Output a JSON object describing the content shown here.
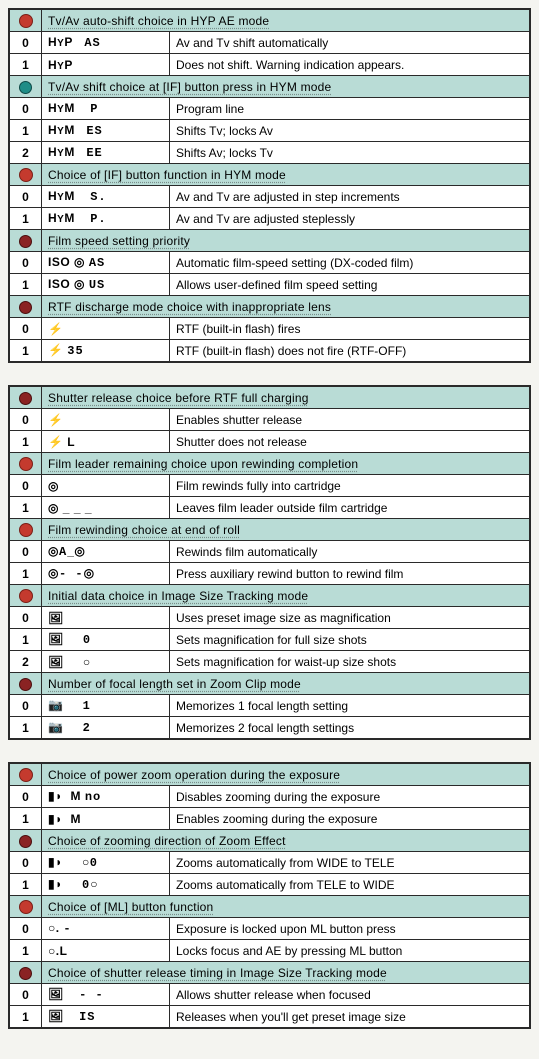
{
  "colors": {
    "header_bg": "#b9dcd6",
    "border": "#2a2a2a",
    "dot_red": "#c43a2e",
    "dot_teal": "#1f8d87",
    "dot_dark": "#8a2323"
  },
  "blocks": [
    {
      "sections": [
        {
          "marker": "red",
          "title": "Tv/Av auto-shift choice in HYP AE mode",
          "rows": [
            {
              "idx": "0",
              "sym_html": "H<span class='sub'>Y</span>P&nbsp;&nbsp;&nbsp;<span class='seg'>AS</span>",
              "desc": "Av and Tv shift automatically"
            },
            {
              "idx": "1",
              "sym_html": "H<span class='sub'>Y</span>P",
              "desc": "Does not shift. Warning indication appears."
            }
          ]
        },
        {
          "marker": "teal",
          "title": "Tv/Av shift choice at  [IF]  button press in HYM mode",
          "rows": [
            {
              "idx": "0",
              "sym_html": "H<span class='sub'>Y</span>M&nbsp;&nbsp;&nbsp;&nbsp;<span class='seg'>P</span>",
              "desc": "Program line"
            },
            {
              "idx": "1",
              "sym_html": "H<span class='sub'>Y</span>M&nbsp;&nbsp;&nbsp;<span class='seg'>ES</span>",
              "desc": "Shifts Tv; locks Av"
            },
            {
              "idx": "2",
              "sym_html": "H<span class='sub'>Y</span>M&nbsp;&nbsp;&nbsp;<span class='seg'>EE</span>",
              "desc": "Shifts Av; locks Tv"
            }
          ]
        },
        {
          "marker": "red",
          "title": "Choice of [IF] button function in HYM mode",
          "rows": [
            {
              "idx": "0",
              "sym_html": "H<span class='sub'>Y</span>M&nbsp;&nbsp;&nbsp;&nbsp;<span class='seg'>S.</span>",
              "desc": "Av and Tv are adjusted in step increments"
            },
            {
              "idx": "1",
              "sym_html": "H<span class='sub'>Y</span>M&nbsp;&nbsp;&nbsp;&nbsp;<span class='seg'>P.</span>",
              "desc": "Av and Tv are adjusted steplessly"
            }
          ]
        },
        {
          "marker": "dark",
          "title": "Film speed setting priority",
          "rows": [
            {
              "idx": "0",
              "sym_html": "ISO ◎ <span class='seg'>AS</span>",
              "desc": "Automatic film-speed setting (DX-coded film)"
            },
            {
              "idx": "1",
              "sym_html": "ISO ◎ <span class='seg'>US</span>",
              "desc": "Allows user-defined film speed setting"
            }
          ]
        },
        {
          "marker": "dark",
          "title": "RTF discharge mode choice with inappropriate lens",
          "rows": [
            {
              "idx": "0",
              "sym_html": "&#x26A1;",
              "desc": "RTF (built-in flash) fires"
            },
            {
              "idx": "1",
              "sym_html": "&#x26A1; <span class='seg'>35</span>",
              "desc": "RTF (built-in flash) does not fire (RTF-OFF)"
            }
          ]
        }
      ]
    },
    {
      "sections": [
        {
          "marker": "dark",
          "title": "Shutter release choice before RTF full charging",
          "rows": [
            {
              "idx": "0",
              "sym_html": "&#x26A1;",
              "desc": "Enables shutter release"
            },
            {
              "idx": "1",
              "sym_html": "&#x26A1; L",
              "desc": "Shutter does not release"
            }
          ]
        },
        {
          "marker": "red",
          "title": "Film leader remaining choice upon rewinding completion",
          "rows": [
            {
              "idx": "0",
              "sym_html": "◎",
              "desc": "Film rewinds fully into cartridge"
            },
            {
              "idx": "1",
              "sym_html": "◎ _ _ _",
              "desc": "Leaves film leader outside film cartridge"
            }
          ]
        },
        {
          "marker": "red",
          "title": "Film rewinding choice at end of roll",
          "rows": [
            {
              "idx": "0",
              "sym_html": "◎<span class='seg'>A</span>_◎",
              "desc": "Rewinds film automatically"
            },
            {
              "idx": "1",
              "sym_html": "◎<span class='seg'>- -</span>◎",
              "desc": "Press auxiliary rewind button to rewind film"
            }
          ]
        },
        {
          "marker": "red",
          "title": "Initial data choice in Image Size Tracking mode",
          "rows": [
            {
              "idx": "0",
              "sym_html": "🖼",
              "desc": "Uses preset image size as magnification"
            },
            {
              "idx": "1",
              "sym_html": "🖼&nbsp;&nbsp;&nbsp;&nbsp;&nbsp;<span class='seg'>0</span>",
              "desc": "Sets magnification for full size shots"
            },
            {
              "idx": "2",
              "sym_html": "🖼&nbsp;&nbsp;&nbsp;&nbsp;&nbsp;○",
              "desc": "Sets magnification for waist-up size shots"
            }
          ]
        },
        {
          "marker": "dark",
          "title": "Number of focal length set in Zoom Clip mode",
          "rows": [
            {
              "idx": "0",
              "sym_html": "📷&nbsp;&nbsp;&nbsp;&nbsp;&nbsp;<span class='seg'>1</span>",
              "desc": "Memorizes 1 focal length setting"
            },
            {
              "idx": "1",
              "sym_html": "📷&nbsp;&nbsp;&nbsp;&nbsp;&nbsp;<span class='seg'>2</span>",
              "desc": "Memorizes 2 focal length settings"
            }
          ]
        }
      ]
    },
    {
      "sections": [
        {
          "marker": "red",
          "title": "Choice of power zoom operation during the exposure",
          "rows": [
            {
              "idx": "0",
              "sym_html": "▮◗ &nbsp;M <span class='seg'>no</span>",
              "desc": "Disables zooming during the exposure"
            },
            {
              "idx": "1",
              "sym_html": "▮◗ &nbsp;M",
              "desc": "Enables zooming during the exposure"
            }
          ]
        },
        {
          "marker": "dark",
          "title": "Choice of zooming direction of Zoom Effect",
          "rows": [
            {
              "idx": "0",
              "sym_html": "▮◗ &nbsp;&nbsp;&nbsp;&nbsp;○<span class='seg'>0</span>",
              "desc": "Zooms automatically from WIDE to TELE"
            },
            {
              "idx": "1",
              "sym_html": "▮◗ &nbsp;&nbsp;&nbsp;&nbsp;<span class='seg'>0</span>○",
              "desc": "Zooms automatically from TELE to WIDE"
            }
          ]
        },
        {
          "marker": "red",
          "title": "Choice of  [ML]  button function",
          "rows": [
            {
              "idx": "0",
              "sym_html": "○.&nbsp;<span class='seg'>-</span>",
              "desc": "Exposure is locked upon ML button press"
            },
            {
              "idx": "1",
              "sym_html": "○.L",
              "desc": "Locks focus and AE by pressing ML button"
            }
          ]
        },
        {
          "marker": "dark",
          "title": "Choice of shutter release timing in Image Size Tracking mode",
          "rows": [
            {
              "idx": "0",
              "sym_html": "🖼&nbsp;&nbsp;&nbsp;&nbsp;<span class='seg'>- -</span>",
              "desc": "Allows shutter release when focused"
            },
            {
              "idx": "1",
              "sym_html": "🖼&nbsp;&nbsp;&nbsp;&nbsp;<span class='seg'>IS</span>",
              "desc": "Releases when you'll get preset image size"
            }
          ]
        }
      ]
    }
  ]
}
